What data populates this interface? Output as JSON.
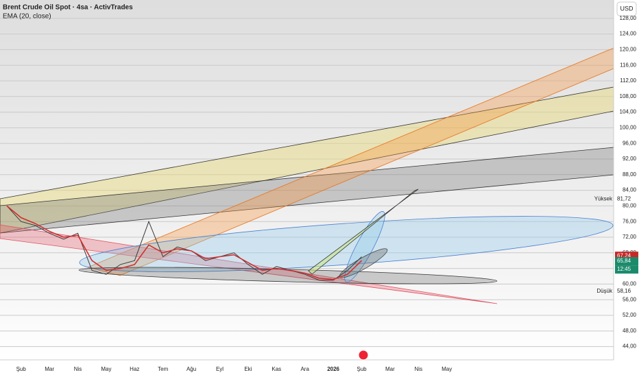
{
  "chart_data": {
    "type": "line",
    "title": "Brent Crude Oil Spot · 4sa · ActivTrades",
    "currency": "USD",
    "categories": [
      null,
      "Şub",
      null,
      "Mar",
      null,
      "Nis",
      null,
      "May",
      null,
      "Haz",
      null,
      "Tem",
      null,
      "Ağu",
      null,
      "Eyl",
      null,
      "Eki",
      null,
      "Kas",
      null,
      "Ara",
      null,
      "2026",
      null,
      "Şub",
      null,
      "Mar",
      null,
      "Nis",
      null,
      "May",
      null,
      null,
      null,
      null,
      null,
      null,
      null,
      null,
      null,
      null,
      null
    ],
    "series": [
      {
        "color": "#3a3a3a",
        "values": [
          80,
          76,
          75,
          73,
          71.5,
          73,
          63.5,
          62.5,
          65,
          66,
          76,
          67,
          69.5,
          68.5,
          66,
          67,
          68,
          65,
          62.5,
          64.5,
          63.5,
          62.5,
          61,
          61,
          63.5,
          67,
          null,
          null,
          null,
          null,
          null,
          null,
          null,
          null,
          null,
          null,
          null,
          null,
          null,
          null,
          null,
          null,
          null
        ]
      },
      {
        "name": "EMA (20, close)",
        "color": "#d32f2f",
        "values": [
          80,
          77,
          75.5,
          73.5,
          72,
          72.5,
          66,
          63.5,
          64,
          65,
          70,
          68,
          69,
          68.5,
          66.5,
          67,
          67.5,
          65.5,
          63.5,
          64,
          63.5,
          62.8,
          61.5,
          61.2,
          62.5,
          66,
          null,
          null,
          null,
          null,
          null,
          null,
          null,
          null,
          null,
          null,
          null,
          null,
          null,
          null,
          null,
          null,
          null
        ]
      }
    ],
    "ylim": [
      40.6,
      132.7
    ],
    "yticks": [
      {
        "value": 44,
        "label": "44,00"
      },
      {
        "value": 48,
        "label": "48,00"
      },
      {
        "value": 52,
        "label": "52,00"
      },
      {
        "value": 56,
        "label": "56,00"
      },
      {
        "value": 60,
        "label": "60,00"
      },
      {
        "value": 64,
        "label": "64,00"
      },
      {
        "value": 68,
        "label": "68,00"
      },
      {
        "value": 72,
        "label": "72,00"
      },
      {
        "value": 76,
        "label": "76,00"
      },
      {
        "value": 80,
        "label": "80,00"
      },
      {
        "value": 84,
        "label": "84,00"
      },
      {
        "value": 88,
        "label": "88,00"
      },
      {
        "value": 92,
        "label": "92,00"
      },
      {
        "value": 96,
        "label": "96,00"
      },
      {
        "value": 100,
        "label": "100,00"
      },
      {
        "value": 104,
        "label": "104,00"
      },
      {
        "value": 108,
        "label": "108,00"
      },
      {
        "value": 112,
        "label": "112,00"
      },
      {
        "value": 116,
        "label": "116,00"
      },
      {
        "value": 120,
        "label": "120,00"
      },
      {
        "value": 124,
        "label": "124,00"
      },
      {
        "value": 128,
        "label": "128,00"
      }
    ],
    "grid": true,
    "high": {
      "label": "Yüksek",
      "value": 81.72,
      "value_label": "81,72"
    },
    "low": {
      "label": "Düşük",
      "value": 58.16,
      "value_label": "58,16"
    },
    "last_price": {
      "value": 67.24,
      "value_label": "67,24",
      "color": "#c62828"
    },
    "ema_last": {
      "value": 65.84,
      "value_label": "65,84",
      "countdown": "12:45",
      "color": "#1b8a6b"
    }
  }
}
